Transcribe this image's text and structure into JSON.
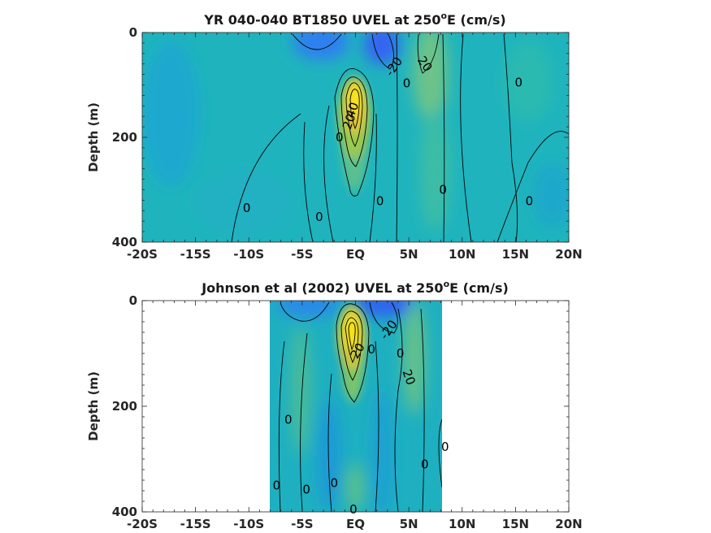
{
  "chart_data": [
    {
      "type": "heatmap",
      "title": "YR 040-040 BT1850 UVEL at 250",
      "title_sup": "o",
      "title_suffix": "E (cm/s)",
      "ylabel": "Depth (m)",
      "xlim": [
        -20,
        20
      ],
      "ylim": [
        0,
        400
      ],
      "y_reversed": true,
      "x_ticks": [
        -20,
        -15,
        -10,
        -5,
        0,
        5,
        10,
        15,
        20
      ],
      "x_tick_labels": [
        "-20S",
        "-15S",
        "-10S",
        "-5S",
        "EQ",
        "5N",
        "10N",
        "15N",
        "20N"
      ],
      "y_ticks": [
        0,
        200,
        400
      ],
      "y_tick_labels": [
        "0",
        "200",
        "400"
      ],
      "data_extent": [
        -20,
        20
      ],
      "contour_labels": [
        {
          "text": "-20",
          "x": 3.6,
          "y": 65,
          "rot": -55
        },
        {
          "text": "20",
          "x": 6.5,
          "y": 60,
          "rot": 55
        },
        {
          "text": "0",
          "x": 4.8,
          "y": 97,
          "rot": 0
        },
        {
          "text": "0",
          "x": 15.3,
          "y": 95,
          "rot": 0
        },
        {
          "text": "40",
          "x": -0.3,
          "y": 148,
          "rot": -70
        },
        {
          "text": "20",
          "x": -0.6,
          "y": 170,
          "rot": -70
        },
        {
          "text": "0",
          "x": -1.5,
          "y": 200,
          "rot": 0
        },
        {
          "text": "0",
          "x": 8.2,
          "y": 300,
          "rot": 0
        },
        {
          "text": "0",
          "x": 2.3,
          "y": 322,
          "rot": 0
        },
        {
          "text": "0",
          "x": 16.3,
          "y": 322,
          "rot": 0
        },
        {
          "text": "0",
          "x": -10.2,
          "y": 335,
          "rot": 0
        },
        {
          "text": "0",
          "x": -3.4,
          "y": 352,
          "rot": 0
        }
      ]
    },
    {
      "type": "heatmap",
      "title": "Johnson et al (2002) UVEL at 250",
      "title_sup": "o",
      "title_suffix": "E (cm/s)",
      "ylabel": "Depth (m)",
      "xlim": [
        -20,
        20
      ],
      "ylim": [
        0,
        400
      ],
      "y_reversed": true,
      "x_ticks": [
        -20,
        -15,
        -10,
        -5,
        0,
        5,
        10,
        15,
        20
      ],
      "x_tick_labels": [
        "-20S",
        "-15S",
        "-10S",
        "-5S",
        "EQ",
        "5N",
        "10N",
        "15N",
        "20N"
      ],
      "y_ticks": [
        0,
        200,
        400
      ],
      "y_tick_labels": [
        "0",
        "200",
        "400"
      ],
      "data_extent": [
        -8,
        8.2
      ],
      "contour_labels": [
        {
          "text": "-20",
          "x": 3.1,
          "y": 55,
          "rot": -55
        },
        {
          "text": "20",
          "x": 0.2,
          "y": 95,
          "rot": -60
        },
        {
          "text": "0",
          "x": 1.5,
          "y": 92,
          "rot": 0
        },
        {
          "text": "0",
          "x": 4.2,
          "y": 100,
          "rot": 0
        },
        {
          "text": "20",
          "x": 5.0,
          "y": 145,
          "rot": 70
        },
        {
          "text": "0",
          "x": -6.3,
          "y": 225,
          "rot": 0
        },
        {
          "text": "0",
          "x": 8.4,
          "y": 277,
          "rot": 0
        },
        {
          "text": "0",
          "x": 6.5,
          "y": 310,
          "rot": 0
        },
        {
          "text": "0",
          "x": -7.4,
          "y": 350,
          "rot": 0
        },
        {
          "text": "0",
          "x": -4.6,
          "y": 358,
          "rot": 0
        },
        {
          "text": "0",
          "x": -2.0,
          "y": 345,
          "rot": 0
        },
        {
          "text": "0",
          "x": -0.2,
          "y": 395,
          "rot": 0
        }
      ]
    }
  ]
}
